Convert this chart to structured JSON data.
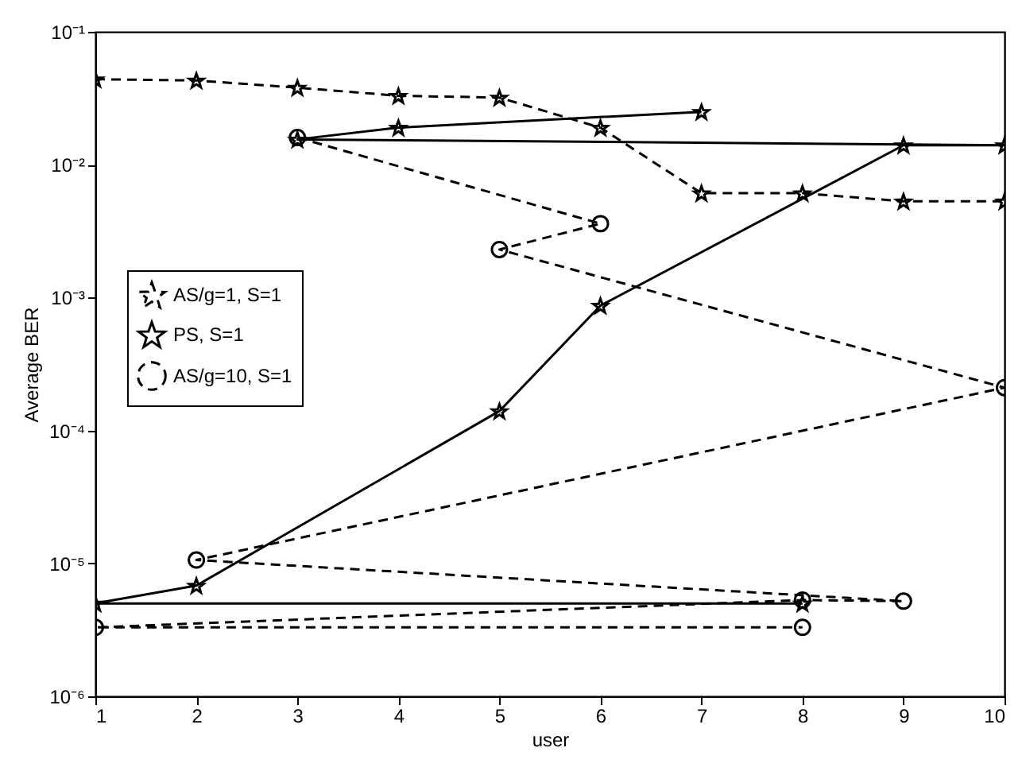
{
  "chart_data": {
    "type": "line",
    "xlabel": "user",
    "ylabel": "Average BER",
    "xlim": [
      1,
      10
    ],
    "xticks": [
      1,
      2,
      3,
      4,
      5,
      6,
      7,
      8,
      9,
      10
    ],
    "ylim": [
      1e-06,
      0.1
    ],
    "yticks": [
      {
        "value": 1e-06,
        "label": "10⁻⁶"
      },
      {
        "value": 1e-05,
        "label": "10⁻⁵"
      },
      {
        "value": 0.0001,
        "label": "10⁻⁴"
      },
      {
        "value": 0.001,
        "label": "10⁻³"
      },
      {
        "value": 0.01,
        "label": "10⁻²"
      },
      {
        "value": 0.1,
        "label": "10⁻¹"
      }
    ],
    "log": "y",
    "grid": false,
    "legend": "left",
    "series": [
      {
        "name": "AS/g=1, S=1",
        "color": "#000000",
        "marker": "star",
        "line_style": "dashed",
        "x": [
          1,
          2,
          3,
          4,
          5,
          6,
          7,
          8,
          9,
          10
        ],
        "values": [
          0.044,
          0.043,
          0.038,
          0.033,
          0.032,
          0.019,
          0.0061,
          0.0061,
          0.0053,
          0.0053
        ]
      },
      {
        "name": "PS, S=1",
        "color": "#000000",
        "marker": "star",
        "line_style": "solid",
        "x": [
          8,
          1,
          2,
          5,
          6,
          9,
          10,
          3,
          4,
          7
        ],
        "values": [
          5e-06,
          5e-06,
          6.8e-06,
          0.00014,
          0.00087,
          0.014,
          0.014,
          0.0155,
          0.019,
          0.025
        ]
      },
      {
        "name": "AS/g=10, S=1",
        "color": "#000000",
        "marker": "circle",
        "line_style": "dashed",
        "x": [
          3,
          6,
          5,
          10,
          2,
          9,
          8,
          1,
          8
        ],
        "values": [
          0.016,
          0.0036,
          0.0023,
          0.00021,
          1.06e-05,
          5.2e-06,
          5.3e-06,
          3.3e-06,
          3.3e-06
        ]
      }
    ]
  }
}
